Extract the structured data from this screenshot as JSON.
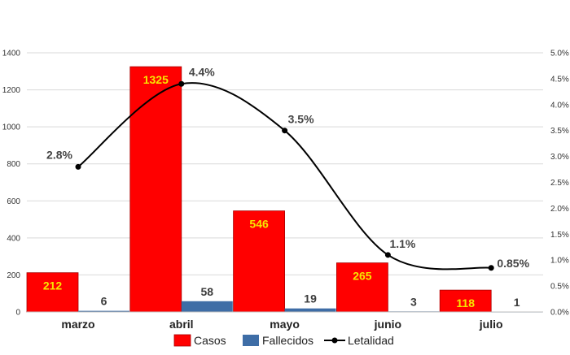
{
  "chart_data": {
    "type": "bar",
    "categories": [
      "marzo",
      "abril",
      "mayo",
      "junio",
      "julio"
    ],
    "series": [
      {
        "name": "Casos",
        "type": "bar",
        "axis": "left",
        "color": "#ff0000",
        "values": [
          212,
          1325,
          546,
          265,
          118
        ],
        "labels": [
          "212",
          "1325",
          "546",
          "265",
          "118"
        ]
      },
      {
        "name": "Fallecidos",
        "type": "bar",
        "axis": "left",
        "color": "#3e6da6",
        "values": [
          6,
          58,
          19,
          3,
          1
        ],
        "labels": [
          "6",
          "58",
          "19",
          "3",
          "1"
        ]
      },
      {
        "name": "Letalidad",
        "type": "line",
        "axis": "right",
        "color": "#000000",
        "values": [
          2.8,
          4.4,
          3.5,
          1.1,
          0.85
        ],
        "labels": [
          "2.8%",
          "4.4%",
          "3.5%",
          "1.1%",
          "0.85%"
        ]
      }
    ],
    "ylim": [
      0,
      1400
    ],
    "y_ticks": [
      "0",
      "200",
      "400",
      "600",
      "800",
      "1000",
      "1200",
      "1400"
    ],
    "y2lim": [
      0,
      5
    ],
    "y2_ticks": [
      "0.0%",
      "0.5%",
      "1.0%",
      "1.5%",
      "2.0%",
      "2.5%",
      "3.0%",
      "3.5%",
      "4.0%",
      "4.5%",
      "5.0%"
    ],
    "grid": true,
    "legend_position": "bottom"
  }
}
